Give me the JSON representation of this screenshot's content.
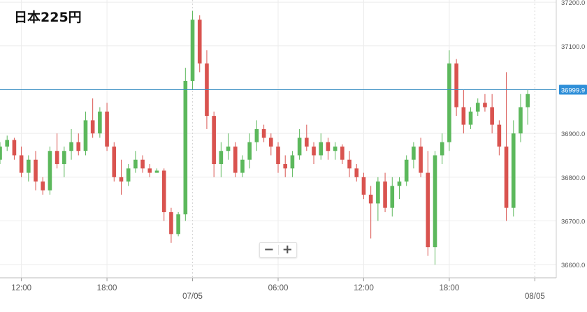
{
  "title": "日本225円",
  "zoom": {
    "minus_label": "−",
    "plus_label": "+"
  },
  "colors": {
    "up": "#5cb85c",
    "down": "#d9534f",
    "doji": "#222222",
    "price_line": "#3b8fc4",
    "price_tag": "#2f8fd8",
    "grid": "#ececec"
  },
  "chart_data": {
    "type": "candlestick",
    "title": "日本225円",
    "current_price": 36999.9,
    "current_price_label": "36999.9",
    "y_ticks": [
      "37200.0",
      "37100.0",
      "37000.0",
      "36900.0",
      "36800.0",
      "36700.0",
      "36600.0"
    ],
    "y_tick_values": [
      37200,
      37100,
      37000,
      36900,
      36800,
      36700,
      36600
    ],
    "ylim": [
      36570,
      37205
    ],
    "x_ticks": [
      "12:00",
      "18:00",
      "07/05",
      "06:00",
      "12:00",
      "18:00",
      "08/05"
    ],
    "x_tick_positions": [
      4,
      16,
      28,
      40,
      52,
      64,
      76
    ],
    "xlim": [
      1,
      79
    ],
    "day_dividers": [
      28,
      76
    ],
    "grid": true,
    "interval": "30m",
    "candles": [
      [
        36840,
        36880,
        36830,
        36870
      ],
      [
        36870,
        36895,
        36860,
        36885
      ],
      [
        36885,
        36890,
        36840,
        36850
      ],
      [
        36850,
        36870,
        36800,
        36810
      ],
      [
        36810,
        36850,
        36790,
        36840
      ],
      [
        36840,
        36860,
        36770,
        36790
      ],
      [
        36790,
        36800,
        36760,
        36770
      ],
      [
        36770,
        36870,
        36760,
        36860
      ],
      [
        36860,
        36900,
        36820,
        36830
      ],
      [
        36830,
        36870,
        36800,
        36860
      ],
      [
        36860,
        36910,
        36840,
        36880
      ],
      [
        36880,
        36900,
        36850,
        36860
      ],
      [
        36860,
        36950,
        36850,
        36930
      ],
      [
        36930,
        36980,
        36890,
        36900
      ],
      [
        36900,
        36960,
        36890,
        36950
      ],
      [
        36950,
        36970,
        36860,
        36870
      ],
      [
        36870,
        36880,
        36790,
        36800
      ],
      [
        36800,
        36840,
        36760,
        36790
      ],
      [
        36790,
        36830,
        36780,
        36820
      ],
      [
        36820,
        36860,
        36810,
        36840
      ],
      [
        36840,
        36850,
        36810,
        36820
      ],
      [
        36820,
        36830,
        36800,
        36810
      ],
      [
        36810,
        36820,
        36810,
        36815
      ],
      [
        36815,
        36820,
        36700,
        36720
      ],
      [
        36720,
        36730,
        36650,
        36670
      ],
      [
        36670,
        36720,
        36665,
        36715
      ],
      [
        36715,
        37050,
        36700,
        37020
      ],
      [
        37020,
        37180,
        37000,
        37160
      ],
      [
        37160,
        37170,
        37040,
        37060
      ],
      [
        37060,
        37090,
        36910,
        36940
      ],
      [
        36940,
        36950,
        36800,
        36830
      ],
      [
        36830,
        36880,
        36800,
        36860
      ],
      [
        36860,
        36900,
        36840,
        36870
      ],
      [
        36870,
        36880,
        36800,
        36810
      ],
      [
        36810,
        36850,
        36800,
        36840
      ],
      [
        36840,
        36900,
        36820,
        36880
      ],
      [
        36880,
        36930,
        36860,
        36910
      ],
      [
        36910,
        36920,
        36880,
        36890
      ],
      [
        36890,
        36900,
        36850,
        36870
      ],
      [
        36870,
        36880,
        36810,
        36830
      ],
      [
        36830,
        36850,
        36800,
        36820
      ],
      [
        36820,
        36860,
        36800,
        36850
      ],
      [
        36850,
        36910,
        36840,
        36890
      ],
      [
        36890,
        36920,
        36860,
        36870
      ],
      [
        36870,
        36880,
        36830,
        36850
      ],
      [
        36850,
        36900,
        36840,
        36880
      ],
      [
        36880,
        36890,
        36840,
        36860
      ],
      [
        36860,
        36880,
        36840,
        36870
      ],
      [
        36870,
        36875,
        36830,
        36840
      ],
      [
        36840,
        36860,
        36800,
        36820
      ],
      [
        36820,
        36830,
        36790,
        36800
      ],
      [
        36800,
        36810,
        36750,
        36760
      ],
      [
        36760,
        36780,
        36660,
        36740
      ],
      [
        36740,
        36800,
        36700,
        36790
      ],
      [
        36790,
        36810,
        36720,
        36730
      ],
      [
        36730,
        36800,
        36710,
        36780
      ],
      [
        36780,
        36800,
        36750,
        36790
      ],
      [
        36790,
        36850,
        36780,
        36840
      ],
      [
        36840,
        36880,
        36820,
        36870
      ],
      [
        36870,
        36890,
        36800,
        36810
      ],
      [
        36810,
        36860,
        36620,
        36640
      ],
      [
        36640,
        36860,
        36600,
        36850
      ],
      [
        36850,
        36900,
        36830,
        36880
      ],
      [
        36880,
        37090,
        36860,
        37060
      ],
      [
        37060,
        37070,
        36940,
        36960
      ],
      [
        36960,
        37000,
        36900,
        36920
      ],
      [
        36920,
        36960,
        36910,
        36950
      ],
      [
        36950,
        36980,
        36940,
        36970
      ],
      [
        36970,
        36990,
        36950,
        36960
      ],
      [
        36960,
        36990,
        36900,
        36920
      ],
      [
        36920,
        36930,
        36850,
        36870
      ],
      [
        36870,
        37040,
        36700,
        36730
      ],
      [
        36730,
        36930,
        36710,
        36900
      ],
      [
        36900,
        36990,
        36880,
        36960
      ],
      [
        36960,
        37000,
        36920,
        36990
      ]
    ]
  }
}
